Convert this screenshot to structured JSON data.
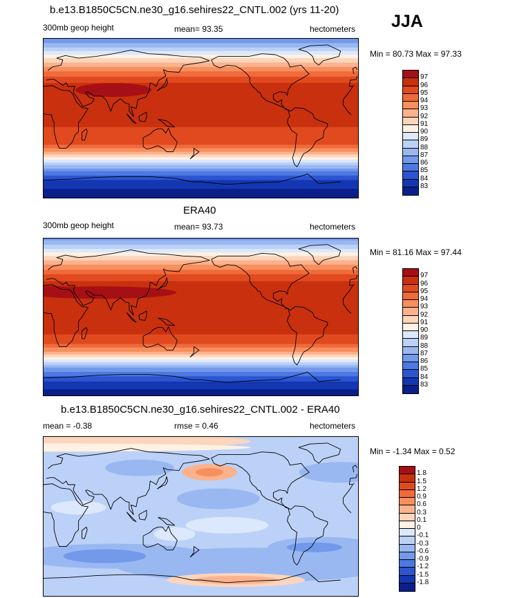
{
  "season": "JJA",
  "panels": [
    {
      "title": "b.e13.B1850C5CN.ne30_g16.sehires22_CNTL.002 (yrs 11-20)",
      "left_label": "300mb geop height",
      "mean_label": "mean=  93.35",
      "units": "hectometers",
      "minmax": "Min =  80.73 Max =  97.33"
    },
    {
      "title": "ERA40",
      "left_label": "300mb geop height",
      "mean_label": "mean=  93.73",
      "units": "hectometers",
      "minmax": "Min =  81.16 Max =  97.44"
    },
    {
      "title": "b.e13.B1850C5CN.ne30_g16.sehires22_CNTL.002 - ERA40",
      "left_label": "mean =  -0.38",
      "mean_label": "rmse =   0.46",
      "units": "hectometers",
      "minmax": "Min =  -1.34 Max =   0.52"
    }
  ],
  "chart_data": [
    {
      "type": "heatmap",
      "title": "b.e13.B1850C5CN.ne30_g16.sehires22_CNTL.002 (yrs 11-20)",
      "variable": "300mb geop height",
      "units": "hectometers",
      "mean": 93.35,
      "min": 80.73,
      "max": 97.33,
      "colorbar_levels": [
        "97",
        "96",
        "95",
        "94",
        "93",
        "92",
        "91",
        "90",
        "89",
        "88",
        "87",
        "86",
        "85",
        "84",
        "83"
      ],
      "colorbar_colors": [
        "#a50f15",
        "#c8300f",
        "#e04a1e",
        "#f06a3c",
        "#f78f5e",
        "#fbb28d",
        "#fcd5bc",
        "#fff1e4",
        "#dce8fb",
        "#bcd1f7",
        "#99b8f2",
        "#7299ea",
        "#4e78e2",
        "#2c55d2",
        "#1437b2",
        "#0a1f8a"
      ],
      "lat_profile": [
        [
          90,
          86
        ],
        [
          80,
          88
        ],
        [
          70,
          90.5
        ],
        [
          60,
          92.5
        ],
        [
          50,
          94.5
        ],
        [
          40,
          96
        ],
        [
          30,
          96.5
        ],
        [
          20,
          96.2
        ],
        [
          10,
          96
        ],
        [
          0,
          96
        ],
        [
          -10,
          96
        ],
        [
          -20,
          95.8
        ],
        [
          -30,
          95
        ],
        [
          -40,
          92.5
        ],
        [
          -50,
          89
        ],
        [
          -60,
          86
        ],
        [
          -70,
          84
        ],
        [
          -80,
          83
        ],
        [
          -90,
          82.5
        ]
      ]
    },
    {
      "type": "heatmap",
      "title": "ERA40",
      "variable": "300mb geop height",
      "units": "hectometers",
      "mean": 93.73,
      "min": 81.16,
      "max": 97.44,
      "colorbar_levels": [
        "97",
        "96",
        "95",
        "94",
        "93",
        "92",
        "91",
        "90",
        "89",
        "88",
        "87",
        "86",
        "85",
        "84",
        "83"
      ],
      "colorbar_colors": [
        "#a50f15",
        "#c8300f",
        "#e04a1e",
        "#f06a3c",
        "#f78f5e",
        "#fbb28d",
        "#fcd5bc",
        "#fff1e4",
        "#dce8fb",
        "#bcd1f7",
        "#99b8f2",
        "#7299ea",
        "#4e78e2",
        "#2c55d2",
        "#1437b2",
        "#0a1f8a"
      ],
      "lat_profile": [
        [
          90,
          86.5
        ],
        [
          80,
          88.5
        ],
        [
          70,
          91
        ],
        [
          60,
          93
        ],
        [
          50,
          94.8
        ],
        [
          40,
          96.2
        ],
        [
          30,
          96.8
        ],
        [
          20,
          96.5
        ],
        [
          10,
          96.2
        ],
        [
          0,
          96.2
        ],
        [
          -10,
          96.2
        ],
        [
          -20,
          96
        ],
        [
          -30,
          95.2
        ],
        [
          -40,
          93
        ],
        [
          -50,
          89.5
        ],
        [
          -60,
          86.5
        ],
        [
          -70,
          84.5
        ],
        [
          -80,
          83.2
        ],
        [
          -90,
          82.5
        ]
      ]
    },
    {
      "type": "heatmap",
      "title": "b.e13.B1850C5CN.ne30_g16.sehires22_CNTL.002 - ERA40",
      "units": "hectometers",
      "mean": -0.38,
      "rmse": 0.46,
      "min": -1.34,
      "max": 0.52,
      "colorbar_levels": [
        "1.8",
        "1.5",
        "1.2",
        "0.9",
        "0.6",
        "0.3",
        "0.1",
        "0",
        "-0.1",
        "-0.3",
        "-0.6",
        "-0.9",
        "-1.2",
        "-1.5",
        "-1.8"
      ],
      "colorbar_colors": [
        "#a50f15",
        "#c8300f",
        "#e04a1e",
        "#f06a3c",
        "#f78f5e",
        "#fbb28d",
        "#fcd5bc",
        "#fff1e4",
        "#dce8fb",
        "#bcd1f7",
        "#99b8f2",
        "#7299ea",
        "#4e78e2",
        "#2c55d2",
        "#1437b2",
        "#0a1f8a"
      ]
    }
  ]
}
